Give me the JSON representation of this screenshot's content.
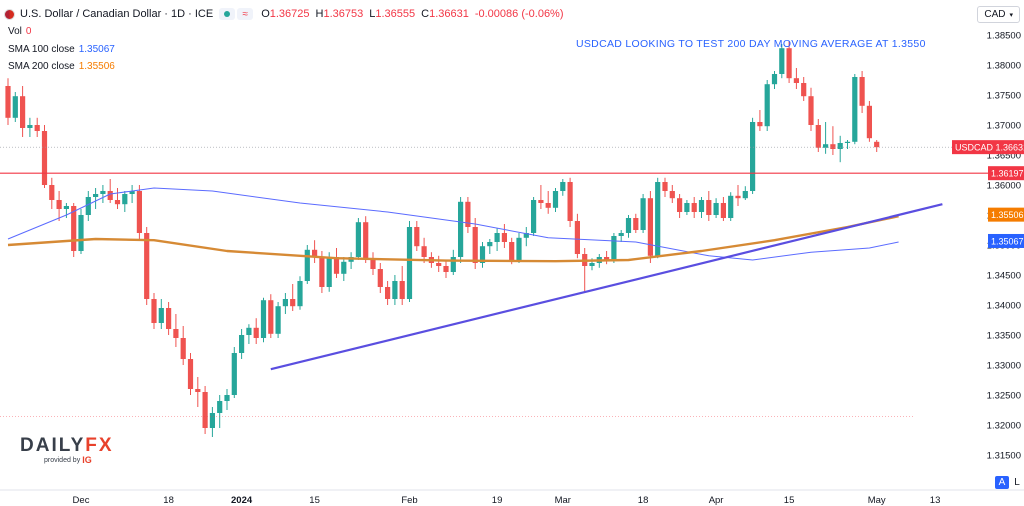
{
  "header": {
    "symbol": "U.S. Dollar / Canadian Dollar · 1D · ICE",
    "ohlc": [
      {
        "k": "O",
        "v": "1.36725"
      },
      {
        "k": "H",
        "v": "1.36753"
      },
      {
        "k": "L",
        "v": "1.36555"
      },
      {
        "k": "C",
        "v": "1.36631"
      },
      {
        "k": "",
        "v": "-0.00086 (-0.06%)"
      }
    ]
  },
  "indicators": {
    "vol_label": "Vol",
    "vol_value": "0",
    "sma100_label": "SMA 100 close",
    "sma100_value": "1.35067",
    "sma200_label": "SMA 200 close",
    "sma200_value": "1.35506"
  },
  "currency_button": "CAD",
  "logo": {
    "brand_a": "DAILY",
    "brand_b": "FX",
    "provided_by": "provided by",
    "ig": "IG"
  },
  "bottom_buttons": {
    "a": "A",
    "l": "L",
    "gear": "⚙"
  },
  "chart_data": {
    "type": "candlestick",
    "title": "USDCAD LOOKING TO TEST 200 DAY MOVING AVERAGE AT 1.3550",
    "y_ticks": [
      "1.38500",
      "1.38000",
      "1.37500",
      "1.37000",
      "1.36500",
      "1.36000",
      "1.35500",
      "1.35000",
      "1.34500",
      "1.34000",
      "1.33500",
      "1.33000",
      "1.32500",
      "1.32000",
      "1.31500"
    ],
    "y_tick_values": [
      1.385,
      1.38,
      1.375,
      1.37,
      1.365,
      1.36,
      1.355,
      1.35,
      1.345,
      1.34,
      1.335,
      1.33,
      1.325,
      1.32,
      1.315
    ],
    "ylim": [
      1.3125,
      1.3875
    ],
    "x_ticks": [
      {
        "label": "Dec",
        "idx": 10,
        "bold": false
      },
      {
        "label": "18",
        "idx": 22,
        "bold": false
      },
      {
        "label": "2024",
        "idx": 32,
        "bold": true
      },
      {
        "label": "15",
        "idx": 42,
        "bold": false
      },
      {
        "label": "Feb",
        "idx": 55,
        "bold": false
      },
      {
        "label": "19",
        "idx": 67,
        "bold": false
      },
      {
        "label": "Mar",
        "idx": 76,
        "bold": false
      },
      {
        "label": "18",
        "idx": 87,
        "bold": false
      },
      {
        "label": "Apr",
        "idx": 97,
        "bold": false
      },
      {
        "label": "15",
        "idx": 107,
        "bold": false
      },
      {
        "label": "May",
        "idx": 119,
        "bold": false
      },
      {
        "label": "13",
        "idx": 127,
        "bold": false
      }
    ],
    "price_labels": [
      {
        "text": "USDCAD  1.36631",
        "value": 1.36631,
        "color": "#f23645"
      },
      {
        "text": "1.36197",
        "value": 1.36197,
        "color": "#f23645"
      },
      {
        "text": "1.35506",
        "value": 1.35506,
        "color": "#f57c00"
      },
      {
        "text": "1.35067",
        "value": 1.35067,
        "color": "#2962ff"
      }
    ],
    "horizontal_line": 1.36197,
    "trendline": {
      "start": {
        "idx": 36,
        "value": 1.3293
      },
      "end": {
        "idx": 128,
        "value": 1.3568
      }
    },
    "candles": [
      [
        1.3765,
        1.3778,
        1.37,
        1.3712
      ],
      [
        1.3712,
        1.3755,
        1.3705,
        1.3748
      ],
      [
        1.3748,
        1.3765,
        1.368,
        1.3695
      ],
      [
        1.3695,
        1.3712,
        1.368,
        1.37
      ],
      [
        1.37,
        1.3712,
        1.368,
        1.369
      ],
      [
        1.369,
        1.37,
        1.3595,
        1.36
      ],
      [
        1.36,
        1.3612,
        1.356,
        1.3575
      ],
      [
        1.3575,
        1.359,
        1.354,
        1.356
      ],
      [
        1.356,
        1.357,
        1.3545,
        1.3565
      ],
      [
        1.3565,
        1.357,
        1.348,
        1.349
      ],
      [
        1.349,
        1.356,
        1.3485,
        1.355
      ],
      [
        1.355,
        1.359,
        1.354,
        1.358
      ],
      [
        1.358,
        1.3595,
        1.356,
        1.3585
      ],
      [
        1.3585,
        1.36,
        1.357,
        1.359
      ],
      [
        1.359,
        1.361,
        1.357,
        1.3575
      ],
      [
        1.3575,
        1.3595,
        1.356,
        1.3568
      ],
      [
        1.3568,
        1.359,
        1.3555,
        1.3585
      ],
      [
        1.3585,
        1.36,
        1.357,
        1.359
      ],
      [
        1.359,
        1.36,
        1.351,
        1.352
      ],
      [
        1.352,
        1.353,
        1.34,
        1.341
      ],
      [
        1.341,
        1.342,
        1.336,
        1.337
      ],
      [
        1.337,
        1.341,
        1.336,
        1.3395
      ],
      [
        1.3395,
        1.3405,
        1.335,
        1.336
      ],
      [
        1.336,
        1.3385,
        1.333,
        1.3345
      ],
      [
        1.3345,
        1.3365,
        1.33,
        1.331
      ],
      [
        1.331,
        1.332,
        1.325,
        1.326
      ],
      [
        1.326,
        1.328,
        1.323,
        1.3255
      ],
      [
        1.3255,
        1.3265,
        1.3185,
        1.3195
      ],
      [
        1.3195,
        1.323,
        1.318,
        1.322
      ],
      [
        1.322,
        1.325,
        1.3195,
        1.324
      ],
      [
        1.324,
        1.326,
        1.3225,
        1.325
      ],
      [
        1.325,
        1.333,
        1.3245,
        1.332
      ],
      [
        1.332,
        1.336,
        1.331,
        1.335
      ],
      [
        1.335,
        1.3368,
        1.3335,
        1.3362
      ],
      [
        1.3362,
        1.3378,
        1.3335,
        1.3345
      ],
      [
        1.3345,
        1.3412,
        1.3338,
        1.3408
      ],
      [
        1.3408,
        1.3418,
        1.3345,
        1.3352
      ],
      [
        1.3352,
        1.3405,
        1.3345,
        1.3398
      ],
      [
        1.3398,
        1.342,
        1.3385,
        1.341
      ],
      [
        1.341,
        1.3435,
        1.339,
        1.3398
      ],
      [
        1.3398,
        1.3448,
        1.3392,
        1.344
      ],
      [
        1.344,
        1.35,
        1.3435,
        1.3492
      ],
      [
        1.3492,
        1.3508,
        1.347,
        1.348
      ],
      [
        1.348,
        1.349,
        1.342,
        1.343
      ],
      [
        1.343,
        1.3488,
        1.3422,
        1.348
      ],
      [
        1.348,
        1.3495,
        1.3445,
        1.3452
      ],
      [
        1.3452,
        1.348,
        1.344,
        1.3472
      ],
      [
        1.3472,
        1.3488,
        1.346,
        1.348
      ],
      [
        1.348,
        1.3545,
        1.3475,
        1.3538
      ],
      [
        1.3538,
        1.3548,
        1.347,
        1.3478
      ],
      [
        1.3478,
        1.3488,
        1.345,
        1.346
      ],
      [
        1.346,
        1.347,
        1.342,
        1.343
      ],
      [
        1.343,
        1.344,
        1.34,
        1.341
      ],
      [
        1.341,
        1.345,
        1.34,
        1.344
      ],
      [
        1.344,
        1.3465,
        1.34,
        1.341
      ],
      [
        1.341,
        1.354,
        1.3405,
        1.353
      ],
      [
        1.353,
        1.354,
        1.349,
        1.3498
      ],
      [
        1.3498,
        1.3512,
        1.347,
        1.348
      ],
      [
        1.348,
        1.3488,
        1.3462,
        1.347
      ],
      [
        1.347,
        1.3482,
        1.3455,
        1.3465
      ],
      [
        1.3465,
        1.3475,
        1.3445,
        1.3455
      ],
      [
        1.3455,
        1.3492,
        1.345,
        1.348
      ],
      [
        1.348,
        1.358,
        1.347,
        1.3572
      ],
      [
        1.3572,
        1.358,
        1.352,
        1.353
      ],
      [
        1.353,
        1.3545,
        1.346,
        1.347
      ],
      [
        1.347,
        1.3505,
        1.3462,
        1.3498
      ],
      [
        1.3498,
        1.351,
        1.3485,
        1.3505
      ],
      [
        1.3505,
        1.3528,
        1.349,
        1.352
      ],
      [
        1.352,
        1.3535,
        1.3495,
        1.3505
      ],
      [
        1.3505,
        1.3512,
        1.3468,
        1.3475
      ],
      [
        1.3475,
        1.352,
        1.347,
        1.3512
      ],
      [
        1.3512,
        1.353,
        1.3498,
        1.352
      ],
      [
        1.352,
        1.358,
        1.3515,
        1.3575
      ],
      [
        1.3575,
        1.36,
        1.356,
        1.357
      ],
      [
        1.357,
        1.359,
        1.3552,
        1.3562
      ],
      [
        1.3562,
        1.3595,
        1.3555,
        1.359
      ],
      [
        1.359,
        1.361,
        1.3582,
        1.3605
      ],
      [
        1.3605,
        1.3612,
        1.353,
        1.354
      ],
      [
        1.354,
        1.3552,
        1.3478,
        1.3485
      ],
      [
        1.3485,
        1.3495,
        1.342,
        1.3465
      ],
      [
        1.3465,
        1.3478,
        1.3458,
        1.347
      ],
      [
        1.347,
        1.3485,
        1.3462,
        1.348
      ],
      [
        1.348,
        1.349,
        1.3468,
        1.3475
      ],
      [
        1.3475,
        1.352,
        1.347,
        1.3515
      ],
      [
        1.3515,
        1.3525,
        1.3505,
        1.352
      ],
      [
        1.352,
        1.355,
        1.3512,
        1.3545
      ],
      [
        1.3545,
        1.3552,
        1.352,
        1.3525
      ],
      [
        1.3525,
        1.3585,
        1.352,
        1.3578
      ],
      [
        1.3578,
        1.359,
        1.347,
        1.3482
      ],
      [
        1.3482,
        1.3612,
        1.3478,
        1.3605
      ],
      [
        1.3605,
        1.3612,
        1.358,
        1.359
      ],
      [
        1.359,
        1.36,
        1.357,
        1.3578
      ],
      [
        1.3578,
        1.3585,
        1.3545,
        1.3555
      ],
      [
        1.3555,
        1.3575,
        1.355,
        1.357
      ],
      [
        1.357,
        1.358,
        1.3545,
        1.3555
      ],
      [
        1.3555,
        1.358,
        1.3545,
        1.3575
      ],
      [
        1.3575,
        1.359,
        1.354,
        1.355
      ],
      [
        1.355,
        1.3578,
        1.3545,
        1.357
      ],
      [
        1.357,
        1.358,
        1.354,
        1.3545
      ],
      [
        1.3545,
        1.3588,
        1.354,
        1.3582
      ],
      [
        1.3582,
        1.36,
        1.3565,
        1.3578
      ],
      [
        1.3578,
        1.3598,
        1.3575,
        1.359
      ],
      [
        1.359,
        1.3712,
        1.3585,
        1.3705
      ],
      [
        1.3705,
        1.3725,
        1.369,
        1.3698
      ],
      [
        1.3698,
        1.3775,
        1.369,
        1.3768
      ],
      [
        1.3768,
        1.379,
        1.376,
        1.3785
      ],
      [
        1.3785,
        1.3835,
        1.3778,
        1.3828
      ],
      [
        1.3828,
        1.384,
        1.377,
        1.3778
      ],
      [
        1.3778,
        1.3795,
        1.376,
        1.377
      ],
      [
        1.377,
        1.378,
        1.374,
        1.3748
      ],
      [
        1.3748,
        1.3762,
        1.369,
        1.37
      ],
      [
        1.37,
        1.371,
        1.3655,
        1.3662
      ],
      [
        1.3662,
        1.3705,
        1.3652,
        1.3668
      ],
      [
        1.3668,
        1.3698,
        1.365,
        1.366
      ],
      [
        1.366,
        1.3682,
        1.3638,
        1.367
      ],
      [
        1.367,
        1.3675,
        1.366,
        1.3672
      ],
      [
        1.3672,
        1.3785,
        1.3668,
        1.378
      ],
      [
        1.378,
        1.379,
        1.372,
        1.3732
      ],
      [
        1.3732,
        1.374,
        1.3672,
        1.3678
      ],
      [
        1.3672,
        1.3675,
        1.3655,
        1.3663
      ]
    ],
    "sma200_points": [
      [
        0,
        1.35
      ],
      [
        12,
        1.351
      ],
      [
        20,
        1.3508
      ],
      [
        30,
        1.349
      ],
      [
        45,
        1.3478
      ],
      [
        60,
        1.3474
      ],
      [
        75,
        1.3473
      ],
      [
        85,
        1.3475
      ],
      [
        95,
        1.349
      ],
      [
        105,
        1.3508
      ],
      [
        115,
        1.353
      ],
      [
        122,
        1.3548
      ]
    ],
    "sma100_points": [
      [
        0,
        1.351
      ],
      [
        8,
        1.355
      ],
      [
        14,
        1.3585
      ],
      [
        20,
        1.3595
      ],
      [
        28,
        1.359
      ],
      [
        40,
        1.357
      ],
      [
        52,
        1.3555
      ],
      [
        64,
        1.3535
      ],
      [
        74,
        1.3512
      ],
      [
        86,
        1.3505
      ],
      [
        96,
        1.3482
      ],
      [
        102,
        1.3475
      ],
      [
        110,
        1.3488
      ],
      [
        118,
        1.3495
      ],
      [
        122,
        1.3505
      ]
    ]
  }
}
